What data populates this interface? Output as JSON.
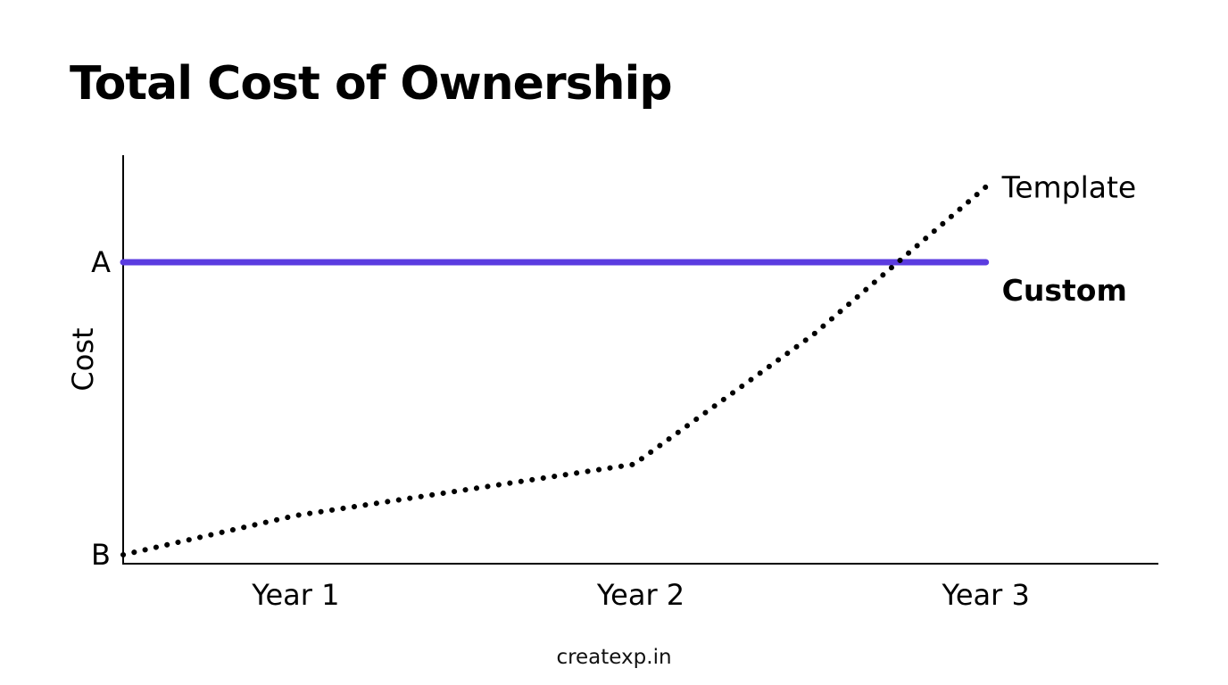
{
  "chart_data": {
    "type": "line",
    "title": "Total Cost of Ownership",
    "xlabel": "",
    "ylabel": "Cost",
    "categories": [
      "Year 1",
      "Year 2",
      "Year 3"
    ],
    "x": [
      0.5,
      1,
      1.5,
      2,
      2.5,
      3
    ],
    "x_range": [
      0.5,
      3.5
    ],
    "ylim": [
      0,
      1
    ],
    "y_ticks": [
      {
        "label": "B",
        "value": 0.03,
        "color": "#000000"
      },
      {
        "label": "A",
        "value": 1.0,
        "color": "#5B3CE0"
      }
    ],
    "grid": false,
    "series": [
      {
        "name": "Custom",
        "style": "solid",
        "color": "#5B3CE0",
        "label_bold": true,
        "label_color": "#000000",
        "points": [
          [
            0.5,
            1.0
          ],
          [
            3.0,
            1.0
          ]
        ]
      },
      {
        "name": "Template",
        "style": "dotted",
        "color": "#000000",
        "label_bold": false,
        "label_color": "#000000",
        "points": [
          [
            0.5,
            0.03
          ],
          [
            1.0,
            0.16
          ],
          [
            1.98,
            0.33
          ],
          [
            2.5,
            0.76
          ],
          [
            3.0,
            1.25
          ]
        ]
      }
    ]
  },
  "footer": {
    "credit": "createxp.in"
  }
}
